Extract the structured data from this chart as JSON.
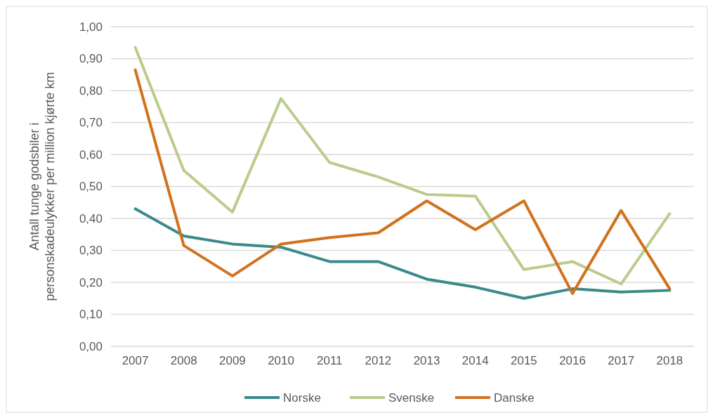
{
  "chart_data": {
    "type": "line",
    "ylabel": "Antall tunge godsbiler i\npersonskadeulykker per million kjørte km",
    "categories": [
      "2007",
      "2008",
      "2009",
      "2010",
      "2011",
      "2012",
      "2013",
      "2014",
      "2015",
      "2016",
      "2017",
      "2018"
    ],
    "series": [
      {
        "name": "Norske",
        "color": "#3a8a8c",
        "values": [
          0.43,
          0.345,
          0.32,
          0.31,
          0.265,
          0.265,
          0.21,
          0.185,
          0.15,
          0.18,
          0.17,
          0.175
        ]
      },
      {
        "name": "Svenske",
        "color": "#b9cc8c",
        "values": [
          0.935,
          0.55,
          0.42,
          0.775,
          0.575,
          0.53,
          0.475,
          0.47,
          0.24,
          0.265,
          0.195,
          0.415
        ]
      },
      {
        "name": "Danske",
        "color": "#d2711e",
        "values": [
          0.865,
          0.315,
          0.22,
          0.32,
          0.34,
          0.355,
          0.455,
          0.365,
          0.455,
          0.165,
          0.425,
          0.18
        ]
      }
    ],
    "ylim": [
      0,
      1
    ],
    "yticks": [
      {
        "value": 0,
        "label": "0,00"
      },
      {
        "value": 0.1,
        "label": "0,10"
      },
      {
        "value": 0.2,
        "label": "0,20"
      },
      {
        "value": 0.3,
        "label": "0,30"
      },
      {
        "value": 0.4,
        "label": "0,40"
      },
      {
        "value": 0.5,
        "label": "0,50"
      },
      {
        "value": 0.6,
        "label": "0,60"
      },
      {
        "value": 0.7,
        "label": "0,70"
      },
      {
        "value": 0.8,
        "label": "0,80"
      },
      {
        "value": 0.9,
        "label": "0,90"
      },
      {
        "value": 1,
        "label": "1,00"
      }
    ],
    "grid": "y",
    "legend": "bottom",
    "line_style": "solid"
  }
}
